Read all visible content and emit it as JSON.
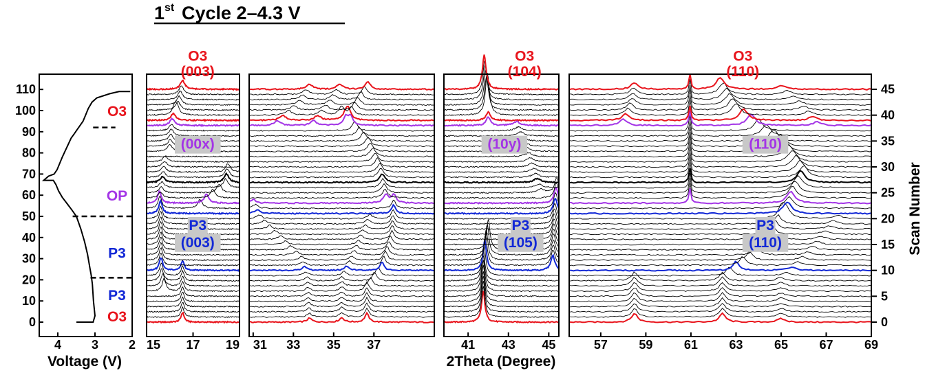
{
  "title": {
    "main": "Cycle 2–4.3 V",
    "ordinal_num": "1",
    "ordinal_sup": "st"
  },
  "colors": {
    "O3": "#e8141c",
    "P3": "#1228d6",
    "OP": "#a334e6",
    "trace": "#000000",
    "highlight_box": "#c8c8c8"
  },
  "chart_data": [
    {
      "type": "line",
      "panel": "voltage-profile",
      "xlabel": "Voltage (V)",
      "ylabel": "",
      "x_ticks": [
        "4",
        "3",
        "2"
      ],
      "y_ticks": [
        "0",
        "10",
        "20",
        "30",
        "40",
        "50",
        "60",
        "70",
        "80",
        "90",
        "100",
        "110"
      ],
      "xlim": [
        4.5,
        2.0
      ],
      "ylim": [
        -4,
        118
      ],
      "x_reversed": true,
      "series": [
        {
          "x": [
            3.5,
            3.05,
            3.0,
            3.04,
            3.07,
            3.1,
            3.14,
            3.2,
            3.28,
            3.38,
            3.5,
            3.62,
            3.75,
            3.88,
            3.98,
            4.05,
            4.12,
            4.22,
            4.38,
            4.25,
            4.1,
            4.02,
            3.95,
            3.88,
            3.8,
            3.72,
            3.64,
            3.56,
            3.48,
            3.4,
            3.32,
            3.25,
            3.18,
            3.08,
            2.95,
            2.6,
            2.35,
            2.05
          ],
          "y": [
            0,
            0,
            3,
            10,
            18,
            22,
            26,
            32,
            38,
            44,
            50,
            53,
            56,
            59,
            62,
            65,
            67,
            67,
            67,
            69,
            70,
            72,
            75,
            78,
            81,
            84,
            87,
            89,
            91,
            93,
            95,
            98,
            101,
            104,
            106,
            108,
            109,
            109
          ]
        }
      ],
      "dashed_lines": [
        {
          "y": 92,
          "x_from": 3.05,
          "x_to": 2.45
        },
        {
          "y": 50,
          "x_from": 3.6,
          "x_to": 2.0
        },
        {
          "y": 21,
          "x_from": 3.12,
          "x_to": 2.0
        }
      ],
      "phase_labels": [
        {
          "text": "O3",
          "y": 100,
          "color": "O3"
        },
        {
          "text": "OP",
          "y": 60,
          "color": "OP"
        },
        {
          "text": "P3",
          "y": 33,
          "color": "P3"
        },
        {
          "text": "P3",
          "y": 13,
          "color": "P3"
        },
        {
          "text": "O3",
          "y": 3,
          "color": "O3"
        }
      ]
    },
    {
      "type": "line",
      "panel": "xrd-waterfall",
      "xlabel": "2Theta (Degree)",
      "ylabel": "Scan Number",
      "y_ticks": [
        "0",
        "5",
        "10",
        "15",
        "20",
        "25",
        "30",
        "35",
        "40",
        "45"
      ],
      "ylim": [
        0,
        46
      ],
      "scans": 46,
      "highlighted_scans": [
        {
          "scan": 0,
          "color": "O3"
        },
        {
          "scan": 10,
          "color": "P3"
        },
        {
          "scan": 21,
          "color": "P3"
        },
        {
          "scan": 23,
          "color": "OP"
        },
        {
          "scan": 27,
          "color": "trace"
        },
        {
          "scan": 38,
          "color": "OP"
        },
        {
          "scan": 39,
          "color": "O3"
        },
        {
          "scan": 45,
          "color": "O3"
        }
      ],
      "panels": [
        {
          "name": "p1",
          "xlim": [
            15.0,
            19.0
          ],
          "x_ticks": [
            "15",
            "17",
            "19"
          ],
          "peaks": [
            {
              "h": 1.0,
              "w": 0.08,
              "path": [
                [
                  0,
                  16.55
                ],
                [
                  6,
                  16.55
                ],
                [
                  10,
                  16.55
                ]
              ]
            },
            {
              "h": 1.3,
              "w": 0.09,
              "path": [
                [
                  6,
                  15.75
                ],
                [
                  8,
                  15.65
                ],
                [
                  10,
                  15.62
                ],
                [
                  21,
                  15.6
                ],
                [
                  23,
                  15.55
                ]
              ]
            },
            {
              "h": 0.9,
              "w": 0.12,
              "path": [
                [
                  22,
                  17.3
                ],
                [
                  26,
                  18.4
                ],
                [
                  29,
                  18.5
                ]
              ]
            },
            {
              "h": 0.6,
              "w": 0.12,
              "path": [
                [
                  24,
                  15.6
                ],
                [
                  31,
                  15.8
                ]
              ]
            },
            {
              "h": 0.7,
              "w": 0.12,
              "path": [
                [
                  33,
                  16.0
                ],
                [
                  38,
                  16.1
                ],
                [
                  40,
                  16.2
                ]
              ]
            },
            {
              "h": 0.9,
              "w": 0.12,
              "path": [
                [
                  40,
                  16.3
                ],
                [
                  43,
                  16.45
                ],
                [
                  45,
                  16.55
                ]
              ]
            }
          ],
          "labels": [
            {
              "text": "O3",
              "x": 17.2,
              "y": 50.5,
              "color": "O3"
            },
            {
              "text": "(003)",
              "x": 17.2,
              "y": 47.5,
              "color": "O3"
            },
            {
              "text": "(00x)",
              "x": 17.2,
              "y": 33.5,
              "color": "OP",
              "boxed": true
            },
            {
              "text": "P3",
              "x": 17.2,
              "y": 17.8,
              "color": "P3",
              "boxed": true
            },
            {
              "text": "(003)",
              "x": 17.2,
              "y": 14.5,
              "color": "P3",
              "boxed": true
            }
          ]
        },
        {
          "name": "p2",
          "xlim": [
            30.8,
            40.0
          ],
          "x_ticks": [
            "31",
            "33",
            "35",
            "37"
          ],
          "peaks": [
            {
              "h": 0.4,
              "w": 0.14,
              "path": [
                [
                  0,
                  33.8
                ],
                [
                  8,
                  33.7
                ],
                [
                  12,
                  33.4
                ],
                [
                  20,
                  31.3
                ],
                [
                  23,
                  31.0
                ]
              ]
            },
            {
              "h": 0.45,
              "w": 0.14,
              "path": [
                [
                  0,
                  35.4
                ],
                [
                  8,
                  35.4
                ],
                [
                  12,
                  35.9
                ],
                [
                  20,
                  36.8
                ]
              ]
            },
            {
              "h": 0.9,
              "w": 0.12,
              "path": [
                [
                  0,
                  36.65
                ],
                [
                  6,
                  36.65
                ],
                [
                  10,
                  37.4
                ],
                [
                  16,
                  37.9
                ],
                [
                  23,
                  38.0
                ]
              ]
            },
            {
              "h": 0.9,
              "w": 0.16,
              "path": [
                [
                  23,
                  37.6
                ],
                [
                  29,
                  37.3
                ],
                [
                  34,
                  36.7
                ],
                [
                  40,
                  35.4
                ]
              ]
            },
            {
              "h": 0.5,
              "w": 0.18,
              "path": [
                [
                  38,
                  32.2
                ],
                [
                  42,
                  33.3
                ],
                [
                  45,
                  33.8
                ]
              ]
            },
            {
              "h": 0.5,
              "w": 0.18,
              "path": [
                [
                  38,
                  34.0
                ],
                [
                  42,
                  34.8
                ],
                [
                  45,
                  35.3
                ]
              ]
            },
            {
              "h": 0.8,
              "w": 0.14,
              "path": [
                [
                  38,
                  35.6
                ],
                [
                  42,
                  36.2
                ],
                [
                  45,
                  36.7
                ]
              ]
            }
          ],
          "labels": []
        },
        {
          "name": "p3",
          "xlim": [
            39.8,
            45.5
          ],
          "x_ticks": [
            "41",
            "43",
            "45"
          ],
          "peaks": [
            {
              "h": 3.2,
              "w": 0.1,
              "path": [
                [
                  0,
                  41.75
                ],
                [
                  8,
                  41.75
                ],
                [
                  12,
                  41.9
                ],
                [
                  14,
                  42.0
                ]
              ]
            },
            {
              "h": 1.6,
              "w": 0.12,
              "path": [
                [
                  10,
                  45.2
                ],
                [
                  20,
                  45.3
                ],
                [
                  25,
                  45.4
                ]
              ]
            },
            {
              "h": 0.4,
              "w": 0.2,
              "path": [
                [
                  25,
                  44.6
                ],
                [
                  32,
                  44.0
                ],
                [
                  38,
                  43.4
                ]
              ]
            },
            {
              "h": 0.9,
              "w": 0.12,
              "path": [
                [
                  38,
                  42.0
                ],
                [
                  40,
                  42.0
                ]
              ]
            },
            {
              "h": 3.6,
              "w": 0.11,
              "path": [
                [
                  40,
                  41.95
                ],
                [
                  43,
                  41.85
                ],
                [
                  45,
                  41.8
                ]
              ]
            }
          ],
          "labels": [
            {
              "text": "O3",
              "x": 43.8,
              "y": 50.5,
              "color": "O3"
            },
            {
              "text": "(104)",
              "x": 43.8,
              "y": 47.5,
              "color": "O3"
            },
            {
              "text": "(10y)",
              "x": 42.8,
              "y": 33.5,
              "color": "OP",
              "boxed": true
            },
            {
              "text": "P3",
              "x": 43.6,
              "y": 17.8,
              "color": "P3",
              "boxed": true
            },
            {
              "text": "(105)",
              "x": 43.6,
              "y": 14.5,
              "color": "P3",
              "boxed": true
            }
          ]
        },
        {
          "name": "p4",
          "xlim": [
            55.6,
            69.0
          ],
          "x_ticks": [
            "57",
            "59",
            "61",
            "63",
            "65",
            "67",
            "69"
          ],
          "peaks": [
            {
              "h": 0.9,
              "w": 0.16,
              "path": [
                [
                  0,
                  58.5
                ],
                [
                  8,
                  58.5
                ]
              ]
            },
            {
              "h": 0.9,
              "w": 0.16,
              "path": [
                [
                  0,
                  62.4
                ],
                [
                  8,
                  62.4
                ],
                [
                  14,
                  64.2
                ],
                [
                  20,
                  65.0
                ]
              ]
            },
            {
              "h": 0.35,
              "w": 0.2,
              "path": [
                [
                  0,
                  65.0
                ],
                [
                  8,
                  65.0
                ],
                [
                  14,
                  66.4
                ],
                [
                  20,
                  67.5
                ]
              ]
            },
            {
              "h": 1.2,
              "w": 0.22,
              "path": [
                [
                  20,
                  65.2
                ],
                [
                  24,
                  65.5
                ],
                [
                  28,
                  66.0
                ],
                [
                  34,
                  65.0
                ],
                [
                  40,
                  63.0
                ],
                [
                  45,
                  62.3
                ]
              ]
            },
            {
              "h": 1.6,
              "w": 0.05,
              "path": [
                [
                  23,
                  60.95
                ],
                [
                  45,
                  60.95
                ]
              ]
            },
            {
              "h": 0.7,
              "w": 0.18,
              "path": [
                [
                  38,
                  58.0
                ],
                [
                  42,
                  58.4
                ],
                [
                  45,
                  58.5
                ]
              ]
            },
            {
              "h": 0.4,
              "w": 0.2,
              "path": [
                [
                  38,
                  66.6
                ],
                [
                  42,
                  65.8
                ],
                [
                  45,
                  65.0
                ]
              ]
            }
          ],
          "labels": [
            {
              "text": "O3",
              "x": 63.3,
              "y": 50.5,
              "color": "O3"
            },
            {
              "text": "(110)",
              "x": 63.3,
              "y": 47.5,
              "color": "O3"
            },
            {
              "text": "(110)",
              "x": 64.3,
              "y": 33.5,
              "color": "OP",
              "boxed": true
            },
            {
              "text": "P3",
              "x": 64.3,
              "y": 17.8,
              "color": "P3",
              "boxed": true
            },
            {
              "text": "(110)",
              "x": 64.3,
              "y": 14.5,
              "color": "P3",
              "boxed": true
            }
          ]
        }
      ]
    }
  ]
}
